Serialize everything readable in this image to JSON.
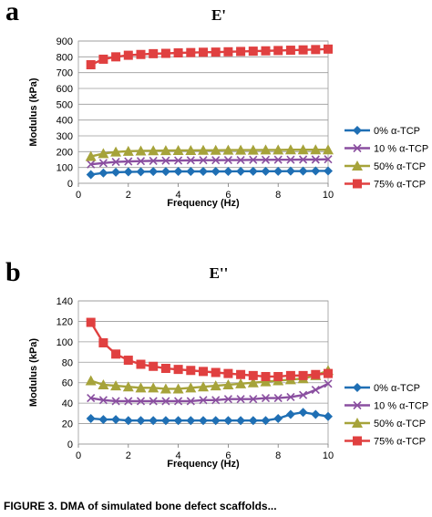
{
  "caption": "FIGURE 3. DMA of simulated bone defect scaffolds...",
  "colors": {
    "0% α-TCP": "#1f6fb4",
    "10 % α-TCP": "#8a4fa0",
    "50% α-TCP": "#a6a33a",
    "75% α-TCP": "#e04040"
  },
  "chart_data": [
    {
      "panel_letter": "a",
      "title": "E'",
      "type": "line",
      "xlabel": "Frequency (Hz)",
      "ylabel": "Modulus (kPa)",
      "xlim": [
        0,
        10
      ],
      "ylim": [
        0,
        900
      ],
      "xticks": [
        0,
        2,
        4,
        6,
        8,
        10
      ],
      "yticks": [
        0,
        100,
        200,
        300,
        400,
        500,
        600,
        700,
        800,
        900
      ],
      "grid": "horizontal",
      "legend": "right",
      "x": [
        0.5,
        1.0,
        1.5,
        2.0,
        2.5,
        3.0,
        3.5,
        4.0,
        4.5,
        5.0,
        5.5,
        6.0,
        6.5,
        7.0,
        7.5,
        8.0,
        8.5,
        9.0,
        9.5,
        10.0
      ],
      "series": [
        {
          "name": "0% α-TCP",
          "marker": "diamond",
          "values": [
            55,
            65,
            70,
            72,
            73,
            74,
            74,
            75,
            75,
            75,
            75,
            75,
            76,
            76,
            76,
            76,
            77,
            77,
            78,
            78
          ]
        },
        {
          "name": "10 % α-TCP",
          "marker": "x",
          "values": [
            120,
            128,
            135,
            138,
            140,
            142,
            143,
            144,
            145,
            146,
            146,
            147,
            147,
            148,
            148,
            149,
            149,
            150,
            150,
            152
          ]
        },
        {
          "name": "50% α-TCP",
          "marker": "triangle",
          "values": [
            170,
            188,
            198,
            203,
            205,
            206,
            207,
            208,
            208,
            209,
            209,
            210,
            210,
            210,
            211,
            211,
            212,
            212,
            212,
            212
          ]
        },
        {
          "name": "75% α-TCP",
          "marker": "square",
          "values": [
            750,
            785,
            800,
            810,
            815,
            820,
            822,
            825,
            827,
            829,
            830,
            832,
            834,
            836,
            838,
            840,
            842,
            844,
            846,
            849
          ]
        }
      ]
    },
    {
      "panel_letter": "b",
      "title": "E''",
      "type": "line",
      "xlabel": "Frequency (Hz)",
      "ylabel": "Modulus (kPa)",
      "xlim": [
        0,
        10
      ],
      "ylim": [
        0,
        140
      ],
      "xticks": [
        0,
        2,
        4,
        6,
        8,
        10
      ],
      "yticks": [
        0,
        20,
        40,
        60,
        80,
        100,
        120,
        140
      ],
      "grid": "horizontal",
      "legend": "right",
      "x": [
        0.5,
        1.0,
        1.5,
        2.0,
        2.5,
        3.0,
        3.5,
        4.0,
        4.5,
        5.0,
        5.5,
        6.0,
        6.5,
        7.0,
        7.5,
        8.0,
        8.5,
        9.0,
        9.5,
        10.0
      ],
      "series": [
        {
          "name": "0% α-TCP",
          "marker": "diamond",
          "values": [
            25,
            24,
            24,
            23,
            23,
            23,
            23,
            23,
            23,
            23,
            23,
            23,
            23,
            23,
            23,
            25,
            29,
            31,
            29,
            27
          ]
        },
        {
          "name": "10 % α-TCP",
          "marker": "x",
          "values": [
            45,
            43,
            42,
            42,
            42,
            42,
            42,
            42,
            42,
            43,
            43,
            44,
            44,
            44,
            45,
            45,
            46,
            48,
            53,
            59
          ]
        },
        {
          "name": "50% α-TCP",
          "marker": "triangle",
          "values": [
            62,
            58,
            57,
            56,
            55,
            55,
            54,
            54,
            55,
            56,
            57,
            58,
            59,
            60,
            61,
            62,
            63,
            64,
            67,
            72
          ]
        },
        {
          "name": "75% α-TCP",
          "marker": "square",
          "values": [
            119,
            99,
            88,
            82,
            78,
            76,
            74,
            73,
            72,
            71,
            70,
            69,
            68,
            67,
            66,
            66,
            67,
            67,
            68,
            69
          ]
        }
      ]
    }
  ]
}
